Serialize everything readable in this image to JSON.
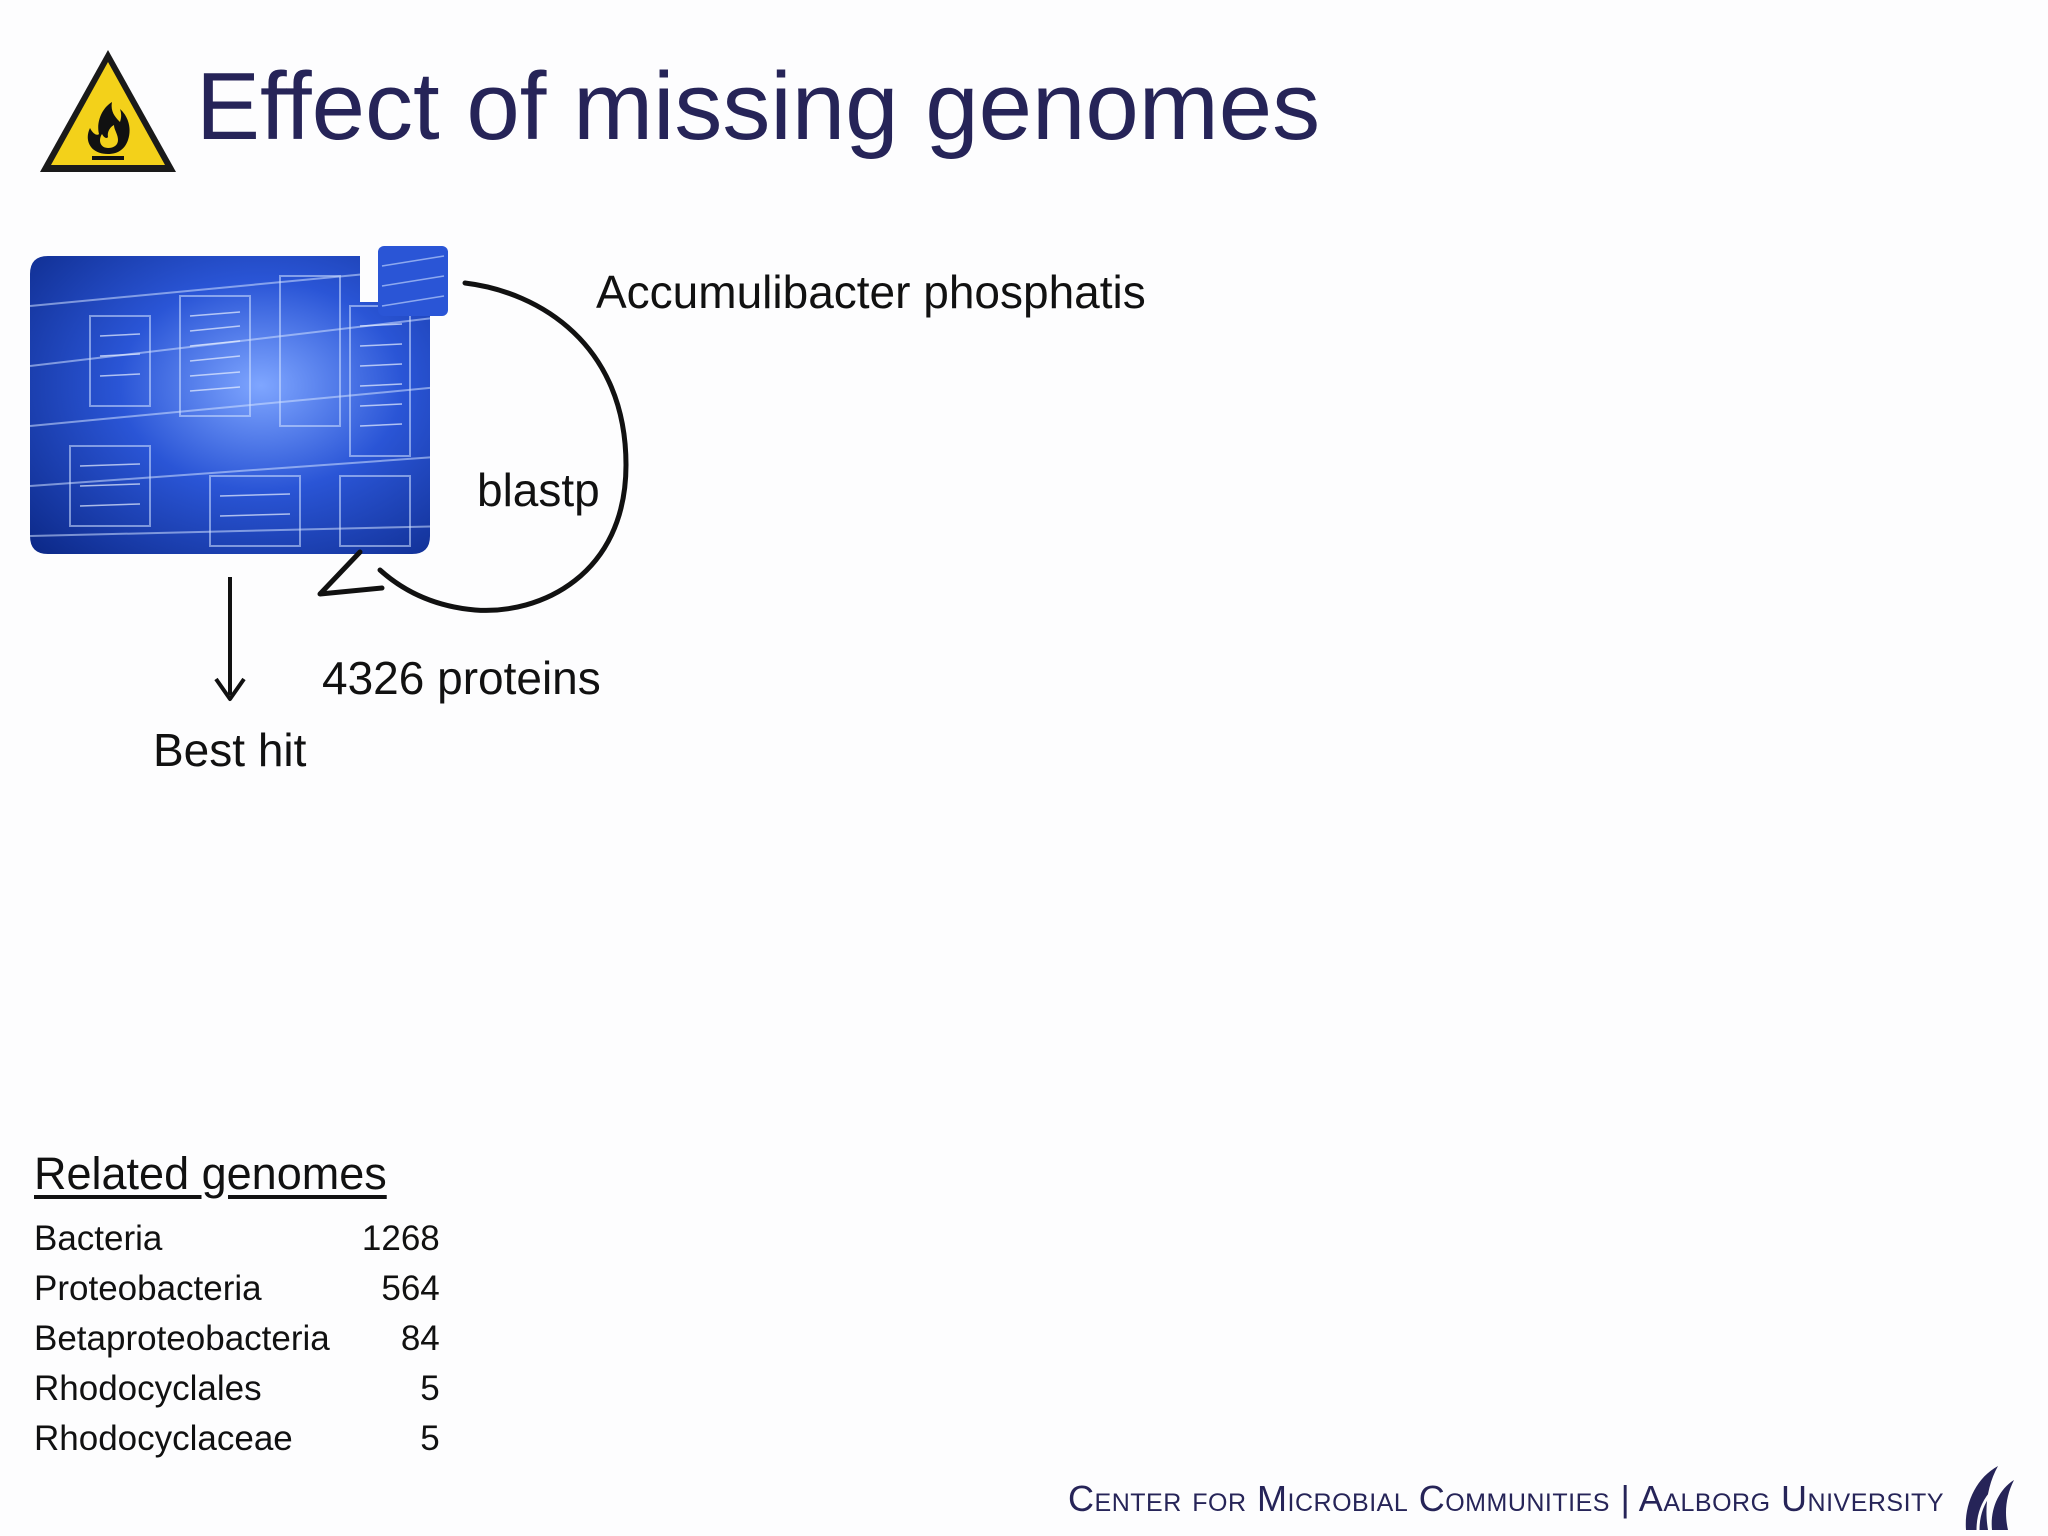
{
  "slide": {
    "title": "Effect of missing genomes",
    "warning_icon": "flammable-warning-icon",
    "database_image": "database-schema-image"
  },
  "diagram": {
    "organism": "Accumulibacter phosphatis",
    "method": "blastp",
    "protein_count": "4326 proteins",
    "result": "Best hit"
  },
  "related": {
    "title": "Related genomes",
    "rows": [
      {
        "name": "Bacteria",
        "count": "1268"
      },
      {
        "name": "Proteobacteria",
        "count": "564"
      },
      {
        "name": "Betaproteobacteria",
        "count": "84"
      },
      {
        "name": "Rhodocyclales",
        "count": "5"
      },
      {
        "name": "Rhodocyclaceae",
        "count": "5"
      }
    ]
  },
  "footer": {
    "text": "Center for Microbial Communities | Aalborg University",
    "logo": "aalborg-university-logo"
  },
  "colors": {
    "title": "#262458",
    "warning_yellow": "#f3d11a",
    "database_blue": "#1e46c8"
  }
}
